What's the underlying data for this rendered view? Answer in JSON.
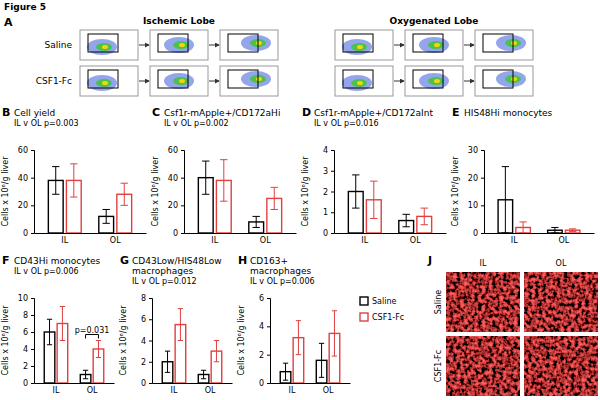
{
  "figure_title": "Figure 5",
  "panel_a": {
    "panel": "A",
    "columns": [
      "Ischemic Lobe",
      "Oxygenated Lobe"
    ],
    "rows": [
      "Saline",
      "CSF1-Fc"
    ]
  },
  "chart_data": [
    {
      "type": "bar",
      "panel": "B",
      "title": "Cell yield",
      "subtitle": "IL v OL p=0.003",
      "y_label": "Cells x 10⁶/g liver",
      "categories": [
        "IL",
        "OL"
      ],
      "ylim": [
        0,
        60
      ],
      "yticks": [
        0,
        20,
        40,
        60
      ],
      "series": [
        {
          "name": "Saline",
          "color": "#000000",
          "values": [
            38,
            12
          ],
          "errors": [
            10,
            5
          ]
        },
        {
          "name": "CSF1-Fc",
          "color": "#e04040",
          "values": [
            38,
            28
          ],
          "errors": [
            12,
            8
          ]
        }
      ]
    },
    {
      "type": "bar",
      "panel": "C",
      "title": "Csf1r-mApple+/CD172aHi",
      "subtitle": "IL v OL p=0.002",
      "y_label": "Cells x 10⁶/g liver",
      "categories": [
        "IL",
        "OL"
      ],
      "ylim": [
        0,
        60
      ],
      "yticks": [
        0,
        20,
        40,
        60
      ],
      "series": [
        {
          "name": "Saline",
          "color": "#000000",
          "values": [
            40,
            8
          ],
          "errors": [
            12,
            4
          ]
        },
        {
          "name": "CSF1-Fc",
          "color": "#e04040",
          "values": [
            38,
            25
          ],
          "errors": [
            15,
            8
          ]
        }
      ]
    },
    {
      "type": "bar",
      "panel": "D",
      "title": "Csf1r-mApple+/CD172aInt",
      "subtitle": "IL v OL p=0.016",
      "y_label": "Cells x 10⁶/g liver",
      "categories": [
        "IL",
        "OL"
      ],
      "ylim": [
        0,
        4
      ],
      "yticks": [
        0,
        1,
        2,
        3,
        4
      ],
      "series": [
        {
          "name": "Saline",
          "color": "#000000",
          "values": [
            2.0,
            0.6
          ],
          "errors": [
            0.8,
            0.3
          ]
        },
        {
          "name": "CSF1-Fc",
          "color": "#e04040",
          "values": [
            1.6,
            0.8
          ],
          "errors": [
            0.9,
            0.4
          ]
        }
      ]
    },
    {
      "type": "bar",
      "panel": "E",
      "title": "HIS48Hi monocytes",
      "y_label": "Cells x 10⁶/g liver",
      "categories": [
        "IL",
        "OL"
      ],
      "ylim": [
        0,
        30
      ],
      "yticks": [
        0,
        10,
        20,
        30
      ],
      "series": [
        {
          "name": "Saline",
          "color": "#000000",
          "values": [
            12,
            1
          ],
          "errors": [
            12,
            1
          ]
        },
        {
          "name": "CSF1-Fc",
          "color": "#e04040",
          "values": [
            2,
            1
          ],
          "errors": [
            2,
            0.5
          ]
        }
      ]
    },
    {
      "type": "bar",
      "panel": "F",
      "title": "CD43Hi monocytes",
      "subtitle": "IL v OL p=0.006",
      "annotation": "p=0.031",
      "y_label": "Cells x 10⁶/g liver",
      "categories": [
        "IL",
        "OL"
      ],
      "ylim": [
        0,
        10
      ],
      "yticks": [
        0,
        2,
        4,
        6,
        8,
        10
      ],
      "series": [
        {
          "name": "Saline",
          "color": "#000000",
          "values": [
            6,
            1
          ],
          "errors": [
            1.5,
            0.5
          ]
        },
        {
          "name": "CSF1-Fc",
          "color": "#e04040",
          "values": [
            7,
            4
          ],
          "errors": [
            2,
            1
          ]
        }
      ]
    },
    {
      "type": "bar",
      "panel": "G",
      "title": "CD43Low/HIS48Low macrophages",
      "subtitle": "IL v OL p=0.012",
      "y_label": "Cells x 10⁶/g liver",
      "categories": [
        "IL",
        "OL"
      ],
      "ylim": [
        0,
        8
      ],
      "yticks": [
        0,
        2,
        4,
        6,
        8
      ],
      "series": [
        {
          "name": "Saline",
          "color": "#000000",
          "values": [
            2,
            0.8
          ],
          "errors": [
            1,
            0.4
          ]
        },
        {
          "name": "CSF1-Fc",
          "color": "#e04040",
          "values": [
            5.5,
            3
          ],
          "errors": [
            1.5,
            1
          ]
        }
      ]
    },
    {
      "type": "bar",
      "panel": "H",
      "title": "CD163+ macrophages",
      "subtitle": "IL v OL p=0.006",
      "y_label": "Cells x 10⁶/g liver",
      "categories": [
        "IL",
        "OL"
      ],
      "ylim": [
        0,
        6
      ],
      "yticks": [
        0,
        2,
        4,
        6
      ],
      "legend": "right",
      "series": [
        {
          "name": "Saline",
          "color": "#000000",
          "values": [
            0.8,
            1.6
          ],
          "errors": [
            0.6,
            1.2
          ]
        },
        {
          "name": "CSF1-Fc",
          "color": "#e04040",
          "values": [
            3.2,
            3.5
          ],
          "errors": [
            1.2,
            1.6
          ]
        }
      ]
    }
  ],
  "panel_j": {
    "panel": "J",
    "columns": [
      "IL",
      "OL"
    ],
    "rows": [
      "Saline",
      "CSF1-Fc"
    ]
  }
}
